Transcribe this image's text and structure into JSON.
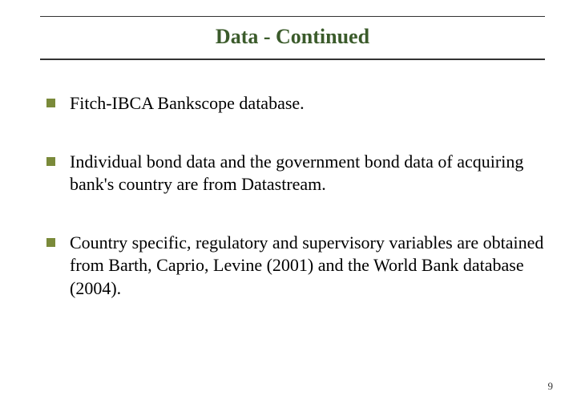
{
  "title": {
    "text": "Data - Continued",
    "color": "#3b5b2b"
  },
  "bullet_icon_color": "#7a8a3a",
  "bullets": [
    {
      "text": "Fitch-IBCA Bankscope database."
    },
    {
      "text": "Individual bond data and the government bond data of acquiring bank's country are from Datastream."
    },
    {
      "text": "Country specific, regulatory and supervisory variables are obtained from Barth, Caprio, Levine (2001) and the World Bank database (2004)."
    }
  ],
  "page_number": "9"
}
